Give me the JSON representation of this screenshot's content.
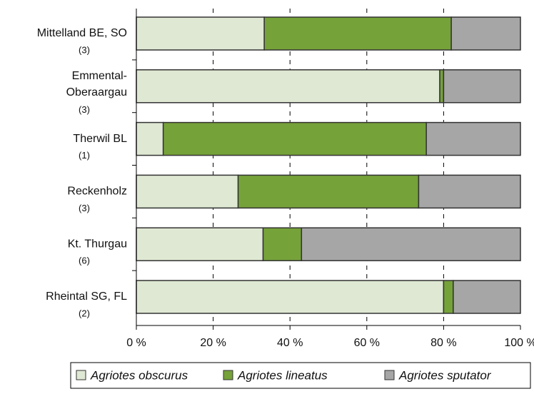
{
  "chart_data": {
    "type": "stacked_bar_horizontal",
    "categories": [
      [
        "Mittelland BE, SO",
        "(3)"
      ],
      [
        "Emmental-",
        "Oberaargau",
        "(3)"
      ],
      [
        "Therwil BL",
        "(1)"
      ],
      [
        "Reckenholz",
        "(3)"
      ],
      [
        "Kt. Thurgau",
        "(6)"
      ],
      [
        "Rheintal SG, FL",
        "(2)"
      ]
    ],
    "series": [
      {
        "name": "Agriotes obscurus",
        "color": "#dfe8d3",
        "values": [
          33.3,
          79,
          7,
          26.5,
          33,
          80
        ]
      },
      {
        "name": "Agriotes lineatus",
        "color": "#76a23a",
        "values": [
          48.7,
          1,
          68.5,
          47,
          10,
          2.5
        ]
      },
      {
        "name": "Agriotes sputator",
        "color": "#a6a6a6",
        "values": [
          18,
          20,
          24.5,
          26.5,
          57,
          17.5
        ]
      }
    ],
    "xlim": [
      0,
      100
    ],
    "xticks": [
      {
        "value": 0,
        "label": "0 %"
      },
      {
        "value": 20,
        "label": "20 %"
      },
      {
        "value": 40,
        "label": "40 %"
      },
      {
        "value": 60,
        "label": "60 %"
      },
      {
        "value": 80,
        "label": "80 %"
      },
      {
        "value": 100,
        "label": "100 %"
      }
    ],
    "grid": true,
    "legend": "bottom"
  }
}
